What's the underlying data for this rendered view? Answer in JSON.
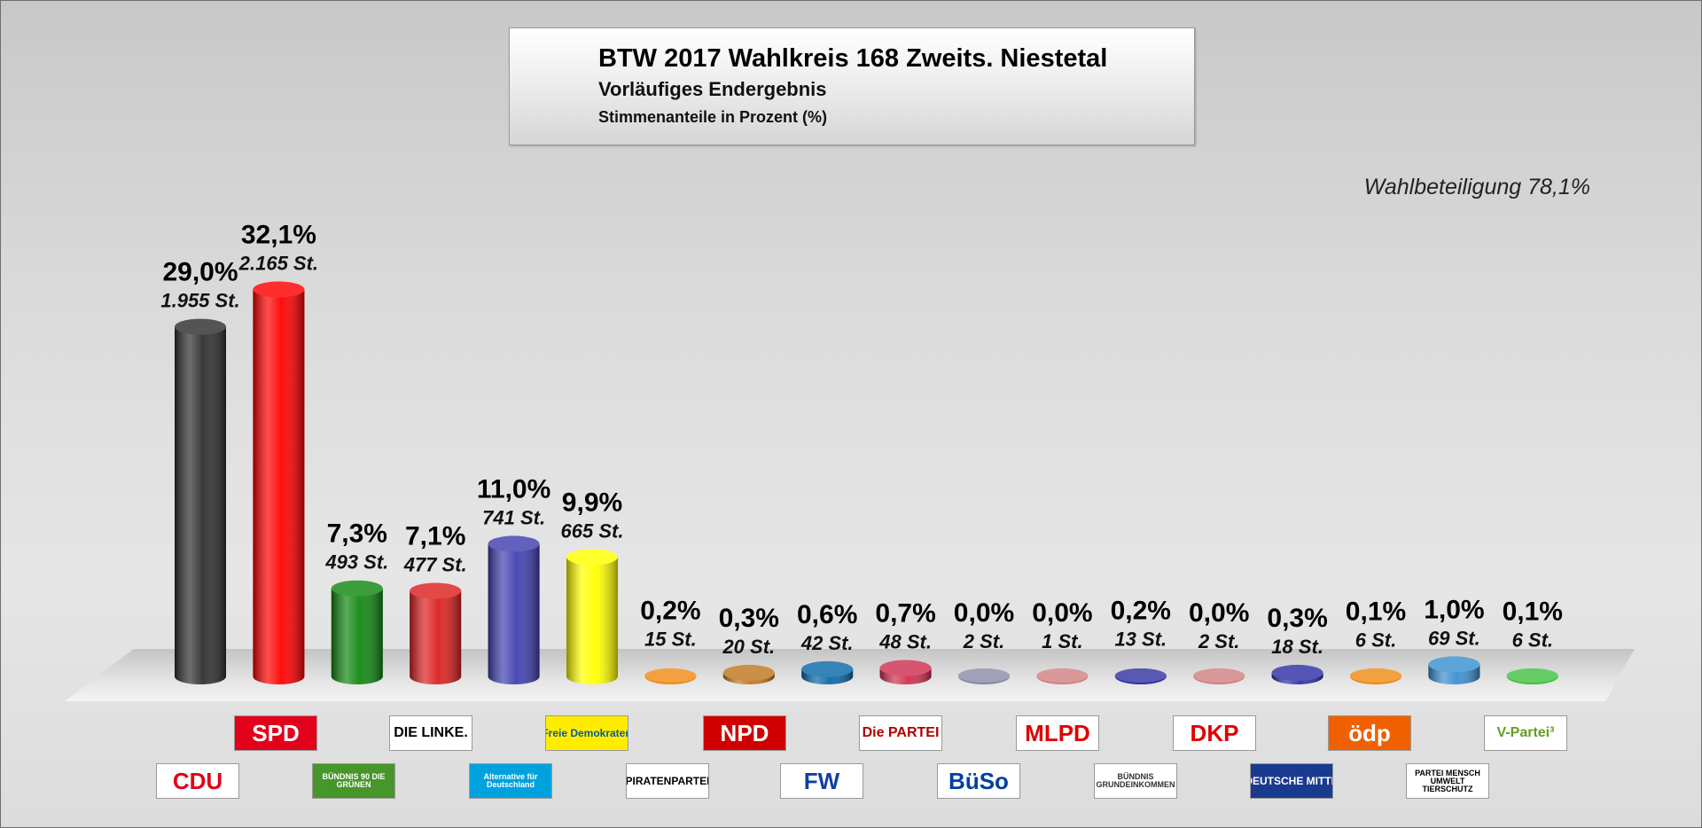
{
  "title": "BTW 2017 Wahlkreis 168 Zweits. Niestetal",
  "subtitle": "Vorläufiges Endergebnis",
  "note": "Stimmenanteile in Prozent (%)",
  "turnout": "Wahlbeteiligung 78,1%",
  "chart_data": {
    "type": "bar",
    "ylim": [
      0,
      35
    ],
    "categories": [
      "CDU",
      "SPD",
      "GRÜNE",
      "DIE LINKE",
      "AfD",
      "FDP",
      "PIRATEN",
      "NPD",
      "FW",
      "Die PARTEI",
      "BüSo",
      "MLPD",
      "BGE",
      "DKP",
      "DM",
      "ÖDP",
      "Tierschutzpartei",
      "V-Partei³"
    ],
    "values": [
      29.0,
      32.1,
      7.3,
      7.1,
      11.0,
      9.9,
      0.2,
      0.3,
      0.6,
      0.7,
      0.0,
      0.0,
      0.2,
      0.0,
      0.3,
      0.1,
      1.0,
      0.1
    ],
    "percent_labels": [
      "29,0%",
      "32,1%",
      "7,3%",
      "7,1%",
      "11,0%",
      "9,9%",
      "0,2%",
      "0,3%",
      "0,6%",
      "0,7%",
      "0,0%",
      "0,0%",
      "0,2%",
      "0,0%",
      "0,3%",
      "0,1%",
      "1,0%",
      "0,1%"
    ],
    "vote_labels": [
      "1.955 St.",
      "2.165 St.",
      "493 St.",
      "477 St.",
      "741 St.",
      "665 St.",
      "15 St.",
      "20 St.",
      "42 St.",
      "48 St.",
      "2 St.",
      "1 St.",
      "13 St.",
      "2 St.",
      "18 St.",
      "6 St.",
      "69 St.",
      "6 St."
    ],
    "colors": [
      "#2f2f2f",
      "#ff0000",
      "#118811",
      "#dd2020",
      "#4040b0",
      "#ffff00",
      "#f08a10",
      "#c07820",
      "#0a68a8",
      "#d03050",
      "#8888a8",
      "#d08080",
      "#3030a0",
      "#d08080",
      "#3030a8",
      "#f08a10",
      "#3a90d0",
      "#40c040"
    ]
  },
  "logos": [
    {
      "text": "SPD",
      "color": "#ffffff",
      "bg": "#e2001a"
    },
    {
      "text": "DIE LINKE.",
      "color": "#000000",
      "bg": "#ffffff"
    },
    {
      "text": "Freie Demokraten",
      "color": "#0a5aa0",
      "bg": "#ffed00"
    },
    {
      "text": "NPD",
      "color": "#ffffff",
      "bg": "#d00000"
    },
    {
      "text": "Die PARTEI",
      "color": "#b00000",
      "bg": "#ffffff"
    },
    {
      "text": "MLPD",
      "color": "#e00000",
      "bg": "#ffffff"
    },
    {
      "text": "DKP",
      "color": "#e00000",
      "bg": "#ffffff"
    },
    {
      "text": "ödp",
      "color": "#ffffff",
      "bg": "#f06000"
    },
    {
      "text": "V-Partei³",
      "color": "#60a020",
      "bg": "#ffffff"
    },
    {
      "text": "CDU",
      "color": "#e2001a",
      "bg": "#ffffff"
    },
    {
      "text": "BÜNDNIS 90 DIE GRÜNEN",
      "color": "#ffffff",
      "bg": "#46962b"
    },
    {
      "text": "Alternative für Deutschland",
      "color": "#ffffff",
      "bg": "#00a2de"
    },
    {
      "text": "PIRATENPARTEI",
      "color": "#000000",
      "bg": "#ffffff"
    },
    {
      "text": "FW",
      "color": "#1040a0",
      "bg": "#ffffff"
    },
    {
      "text": "BüSo",
      "color": "#0040a0",
      "bg": "#ffffff"
    },
    {
      "text": "BÜNDNIS GRUNDEINKOMMEN",
      "color": "#333333",
      "bg": "#ffffff"
    },
    {
      "text": "DEUTSCHE MITTE",
      "color": "#ffffff",
      "bg": "#1a3a90"
    },
    {
      "text": "PARTEI MENSCH UMWELT TIERSCHUTZ",
      "color": "#000000",
      "bg": "#ffffff"
    }
  ]
}
